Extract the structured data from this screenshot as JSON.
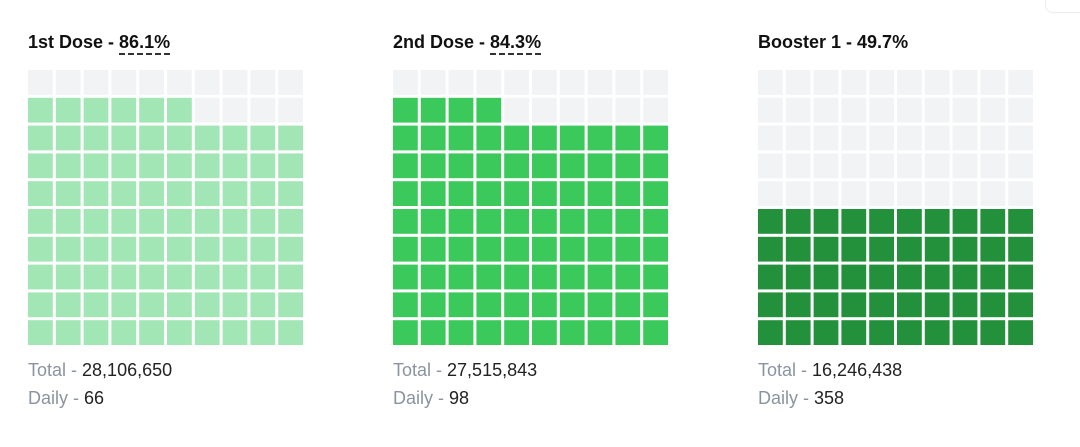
{
  "chart_data": [
    {
      "type": "waffle",
      "title": "1st Dose",
      "percent_label": "86.1%",
      "value_percent": 86.1,
      "grid": [
        10,
        10
      ],
      "fill_color": "#a2e6b5",
      "empty_color": "#f2f3f5",
      "stats": [
        {
          "label": "Total",
          "value": "28,106,650"
        },
        {
          "label": "Daily",
          "value": "66"
        }
      ]
    },
    {
      "type": "waffle",
      "title": "2nd Dose",
      "percent_label": "84.3%",
      "value_percent": 84.3,
      "grid": [
        10,
        10
      ],
      "fill_color": "#3cc95c",
      "empty_color": "#f2f3f5",
      "stats": [
        {
          "label": "Total",
          "value": "27,515,843"
        },
        {
          "label": "Daily",
          "value": "98"
        }
      ]
    },
    {
      "type": "waffle",
      "title": "Booster 1",
      "percent_label": "49.7%",
      "value_percent": 49.7,
      "grid": [
        10,
        10
      ],
      "fill_color": "#23913b",
      "empty_color": "#f2f3f5",
      "stats": [
        {
          "label": "Total",
          "value": "16,246,438"
        },
        {
          "label": "Daily",
          "value": "358"
        }
      ]
    }
  ]
}
